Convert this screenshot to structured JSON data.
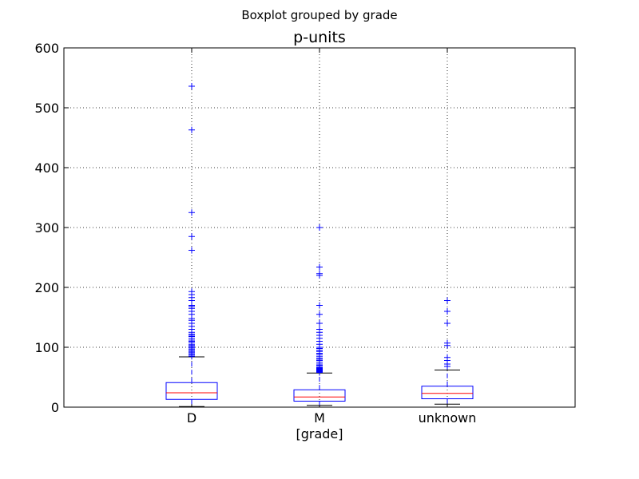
{
  "chart_data": {
    "type": "boxplot",
    "suptitle": "Boxplot grouped by grade",
    "title": "p-units",
    "xlabel": "[grade]",
    "ylabel": "",
    "ylim": [
      0,
      600
    ],
    "yticks": [
      0,
      100,
      200,
      300,
      400,
      500,
      600
    ],
    "grid": true,
    "categories": [
      "D",
      "M",
      "unknown"
    ],
    "boxes": [
      {
        "category": "D",
        "whisker_low": 1,
        "q1": 13,
        "median": 24,
        "q3": 41,
        "whisker_high": 84,
        "outliers": [
          85,
          87,
          89,
          91,
          93,
          95,
          97,
          99,
          101,
          103,
          105,
          108,
          110,
          112,
          115,
          118,
          120,
          122,
          125,
          130,
          135,
          140,
          145,
          148,
          155,
          160,
          165,
          168,
          170,
          178,
          183,
          188,
          193,
          262,
          285,
          325,
          463,
          536
        ]
      },
      {
        "category": "M",
        "whisker_low": 3,
        "q1": 10,
        "median": 17,
        "q3": 29,
        "whisker_high": 57,
        "outliers": [
          58,
          59,
          60,
          61,
          62,
          63,
          64,
          65,
          66,
          68,
          70,
          72,
          75,
          78,
          80,
          82,
          85,
          88,
          90,
          93,
          95,
          98,
          100,
          105,
          110,
          115,
          120,
          125,
          130,
          140,
          155,
          170,
          220,
          223,
          234,
          300
        ]
      },
      {
        "category": "unknown",
        "whisker_low": 5,
        "q1": 14,
        "median": 23,
        "q3": 35,
        "whisker_high": 62,
        "outliers": [
          68,
          72,
          78,
          83,
          103,
          107,
          140,
          160,
          178
        ]
      }
    ],
    "colors": {
      "box": "#0000ff",
      "median": "#ff0000",
      "whisker_cap": "#000000",
      "outlier": "#0000ff",
      "grid": "#000000",
      "frame": "#000000"
    }
  }
}
